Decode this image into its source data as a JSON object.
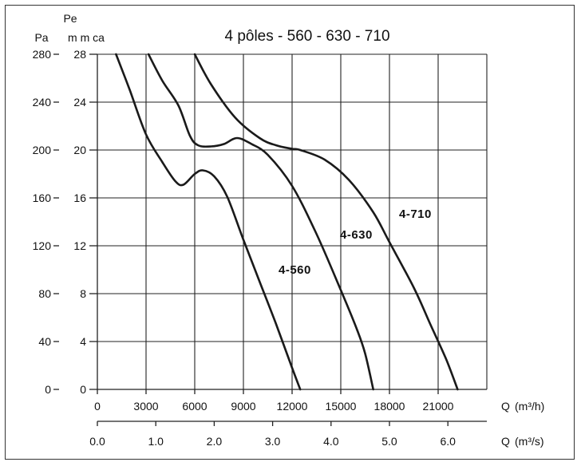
{
  "chart_data": {
    "type": "line",
    "title": "4 pôles - 560 - 630 - 710",
    "y_axis_primary": {
      "unit_label": "Pa",
      "range": [
        0,
        280
      ],
      "ticks": [
        "0",
        "40",
        "80",
        "120",
        "160",
        "200",
        "240",
        "280"
      ]
    },
    "y_axis_secondary": {
      "unit_label_top": "Pe",
      "unit_label": "m m ca",
      "range": [
        0,
        28
      ],
      "ticks": [
        "0",
        "4",
        "8",
        "12",
        "16",
        "20",
        "24",
        "28"
      ]
    },
    "x_axis_primary": {
      "label": "Q",
      "unit": "(m³/h)",
      "range": [
        0,
        24000
      ],
      "ticks": [
        "0",
        "3000",
        "6000",
        "9000",
        "12000",
        "15000",
        "18000",
        "21000"
      ]
    },
    "x_axis_secondary": {
      "label": "Q",
      "unit": "(m³/s)",
      "range": [
        0,
        6.6667
      ],
      "ticks": [
        "0.0",
        "1.0",
        "2.0",
        "3.0",
        "4.0",
        "5.0",
        "6.0"
      ]
    },
    "grid": true,
    "series": [
      {
        "name": "4-560",
        "x": [
          1150,
          2000,
          3000,
          4000,
          4800,
          5300,
          6000,
          6500,
          7200,
          8000,
          9000,
          10000,
          11000,
          12000,
          12500
        ],
        "y": [
          280,
          250,
          213,
          190,
          174,
          171,
          180,
          183,
          178,
          161,
          125,
          90,
          55,
          18,
          0
        ]
      },
      {
        "name": "4-630",
        "x": [
          3150,
          4000,
          5000,
          5700,
          6200,
          7000,
          7800,
          8600,
          9500,
          10500,
          12000,
          13500,
          15000,
          16000,
          16500,
          17000
        ],
        "y": [
          280,
          258,
          237,
          212,
          204,
          203,
          205,
          210,
          205,
          196,
          170,
          130,
          83,
          50,
          30,
          0
        ]
      },
      {
        "name": "4-710",
        "x": [
          6000,
          7000,
          8500,
          10000,
          11000,
          12000,
          12500,
          14000,
          15500,
          17000,
          18000,
          19500,
          20500,
          21500,
          22200
        ],
        "y": [
          280,
          255,
          227,
          210,
          204,
          201,
          200,
          192,
          175,
          148,
          123,
          85,
          55,
          25,
          0
        ]
      }
    ],
    "curve_labels": [
      "4-560",
      "4-630",
      "4-710"
    ]
  }
}
